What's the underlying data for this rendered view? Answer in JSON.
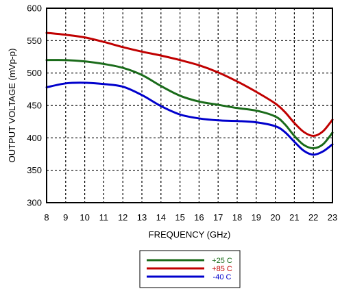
{
  "chart_data": {
    "type": "line",
    "xlabel": "FREQUENCY (GHz)",
    "ylabel": "OUTPUT VOLTAGE (mVp-p)",
    "xlim": [
      8,
      23
    ],
    "ylim": [
      300,
      600
    ],
    "xticks": [
      8,
      9,
      10,
      11,
      12,
      13,
      14,
      15,
      16,
      17,
      18,
      19,
      20,
      21,
      22,
      23
    ],
    "yticks": [
      300,
      350,
      400,
      450,
      500,
      550,
      600
    ],
    "grid": true,
    "legend_position": "bottom-center",
    "series": [
      {
        "name": "+25 C",
        "color": "#1a6b1a",
        "x": [
          8,
          9,
          10,
          11,
          12,
          13,
          14,
          15,
          16,
          17,
          18,
          19,
          20,
          20.5,
          21,
          21.5,
          22,
          22.5,
          23
        ],
        "y": [
          520,
          520,
          518,
          514,
          508,
          497,
          480,
          465,
          456,
          451,
          446,
          442,
          433,
          421,
          403,
          389,
          384,
          390,
          408
        ]
      },
      {
        "name": "+85 C",
        "color": "#c00000",
        "x": [
          8,
          9,
          10,
          11,
          12,
          13,
          14,
          15,
          16,
          17,
          18,
          19,
          20,
          20.5,
          21,
          21.5,
          22,
          22.5,
          23
        ],
        "y": [
          562,
          559,
          555,
          548,
          540,
          533,
          527,
          520,
          512,
          501,
          487,
          471,
          453,
          440,
          423,
          409,
          403,
          410,
          428
        ]
      },
      {
        "name": "-40 C",
        "color": "#0000cc",
        "x": [
          8,
          9,
          10,
          11,
          12,
          13,
          14,
          15,
          16,
          17,
          18,
          19,
          20,
          20.5,
          21,
          21.5,
          22,
          22.5,
          23
        ],
        "y": [
          478,
          484,
          485,
          483,
          479,
          466,
          449,
          436,
          430,
          427,
          426,
          424,
          418,
          409,
          394,
          380,
          374,
          379,
          390
        ]
      }
    ]
  }
}
